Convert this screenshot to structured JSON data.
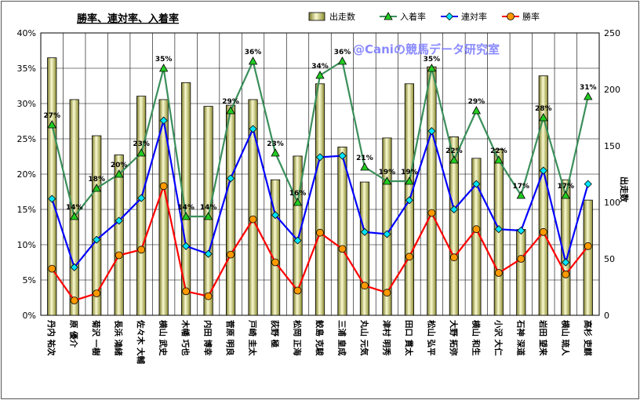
{
  "colors": {
    "bar_fill_light": "#fafad0",
    "bar_fill_dark": "#8a8a30",
    "bar_stroke": "#000000",
    "place_line": "#3a8f5a",
    "place_marker": "#22cc22",
    "quinella_line": "#0000ff",
    "quinella_marker": "#00e5ff",
    "win_line": "#ff0000",
    "win_marker": "#ff9900",
    "grid": "#000000"
  },
  "chart_data": {
    "type": "bar-line combo",
    "title": "勝率、連対率、入着率",
    "watermark": "@Caniの競馬データ研究室",
    "y2label": "出走数",
    "y1lim": [
      0,
      40
    ],
    "y2lim": [
      0,
      250
    ],
    "y1ticks": [
      "0%",
      "5%",
      "10%",
      "15%",
      "20%",
      "25%",
      "30%",
      "35%",
      "40%"
    ],
    "y2ticks": [
      "0",
      "50",
      "100",
      "150",
      "200",
      "250"
    ],
    "legend": [
      "出走数",
      "入着率",
      "連対率",
      "勝率"
    ],
    "categories": [
      "丹内 祐次",
      "原 優介",
      "菊沢 一樹",
      "長浜 鴻緒",
      "佐々木 大輔",
      "横山 武史",
      "木幡 巧也",
      "内田 博幸",
      "菅原 明良",
      "戸崎 圭太",
      "荻野 極",
      "松岡 正海",
      "鮫島 克駿",
      "三浦 皇成",
      "丸山 元気",
      "津村 明秀",
      "田口 貫太",
      "松山 弘平",
      "大野 拓弥",
      "横山 和生",
      "小沢 大仁",
      "石神 深道",
      "岩田 望来",
      "横山 琉人",
      "高杉 吏麒"
    ],
    "series": [
      {
        "name": "出走数",
        "axis": "right",
        "kind": "bar",
        "values": [
          228,
          191,
          159,
          142,
          194,
          191,
          206,
          185,
          186,
          191,
          120,
          141,
          205,
          149,
          118,
          157,
          205,
          220,
          158,
          139,
          147,
          76,
          212,
          120,
          102
        ]
      },
      {
        "name": "入着率",
        "axis": "left",
        "kind": "line",
        "values": [
          27,
          14,
          18,
          20,
          23,
          35,
          14,
          14,
          29,
          36,
          23,
          16,
          34,
          36,
          21,
          19,
          19,
          35,
          22,
          29,
          22,
          17,
          28,
          17,
          31
        ]
      },
      {
        "name": "連対率",
        "axis": "left",
        "kind": "line",
        "values": [
          16.5,
          6.8,
          10.7,
          13.4,
          16.6,
          27.6,
          9.8,
          8.7,
          19.4,
          26.4,
          14.2,
          10.6,
          22.4,
          22.6,
          11.8,
          11.5,
          16.3,
          26.1,
          15,
          18.6,
          12.2,
          12,
          20.5,
          7.5,
          18.6
        ]
      },
      {
        "name": "勝率",
        "axis": "left",
        "kind": "line",
        "values": [
          6.6,
          2.1,
          3.1,
          8.5,
          9.3,
          18.3,
          3.4,
          2.7,
          8.6,
          13.6,
          7.5,
          3.5,
          11.7,
          9.4,
          4.2,
          3.2,
          8.3,
          14.5,
          8.2,
          12.2,
          6,
          8,
          11.8,
          5.8,
          9.8
        ]
      }
    ],
    "place_labels": [
      "27%",
      "14%",
      "18%",
      "20%",
      "23%",
      "35%",
      "14%",
      "14%",
      "29%",
      "36%",
      "23%",
      "16%",
      "34%",
      "36%",
      "21%",
      "19%",
      "19%",
      "35%",
      "22%",
      "29%",
      "22%",
      "17%",
      "28%",
      "17%",
      "31%"
    ],
    "grid": "vertical and horizontal"
  }
}
